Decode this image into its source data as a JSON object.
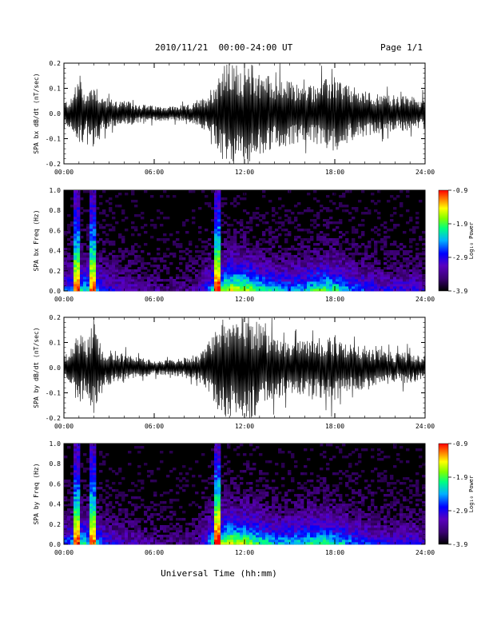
{
  "header": {
    "title": "2010/11/21  00:00-24:00 UT",
    "page": "Page 1/1"
  },
  "footer": {
    "xlabel": "Universal Time (hh:mm)"
  },
  "colors": {
    "trace": "#000000",
    "background": "#ffffff",
    "spectrogram_base": "#000000",
    "colormap": [
      "#000000",
      "#3a0070",
      "#5a00c0",
      "#0000ff",
      "#00b0ff",
      "#00ff80",
      "#80ff00",
      "#ffff00",
      "#ff8000",
      "#ff0000"
    ]
  },
  "chart_data": [
    {
      "type": "line",
      "panel": "bx-dbdt",
      "ylabel": "SPA bx dB/dt (nT/sec)",
      "ylim": [
        -0.2,
        0.2
      ],
      "yticks": [
        "-0.2",
        "-0.1",
        "0.0",
        "0.1",
        "0.2"
      ],
      "ytick_values": [
        -0.2,
        -0.1,
        0.0,
        0.1,
        0.2
      ],
      "xlim": [
        "00:00",
        "24:00"
      ],
      "xticks": [
        "00:00",
        "06:00",
        "12:00",
        "18:00",
        "24:00"
      ],
      "envelope": {
        "x_hours": [
          0,
          0.5,
          1,
          1.5,
          2,
          2.5,
          3,
          4,
          5,
          6,
          7,
          8,
          9,
          9.5,
          10,
          10.5,
          11,
          11.5,
          12,
          12.5,
          13,
          13.5,
          14,
          15,
          16,
          17,
          18,
          19,
          20,
          21,
          22,
          23,
          24
        ],
        "amplitude": [
          0.05,
          0.06,
          0.15,
          0.08,
          0.14,
          0.07,
          0.06,
          0.05,
          0.04,
          0.03,
          0.03,
          0.03,
          0.05,
          0.08,
          0.12,
          0.2,
          0.2,
          0.2,
          0.18,
          0.2,
          0.17,
          0.16,
          0.14,
          0.13,
          0.11,
          0.13,
          0.15,
          0.11,
          0.09,
          0.08,
          0.07,
          0.07,
          0.06
        ]
      }
    },
    {
      "type": "heatmap",
      "panel": "bx-spectrogram",
      "ylabel": "SPA bx Freq (Hz)",
      "ylim": [
        0.0,
        1.0
      ],
      "yticks": [
        "0.0",
        "0.2",
        "0.4",
        "0.6",
        "0.8",
        "1.0"
      ],
      "ytick_values": [
        0.0,
        0.2,
        0.4,
        0.6,
        0.8,
        1.0
      ],
      "xlim": [
        "00:00",
        "24:00"
      ],
      "xticks": [
        "00:00",
        "06:00",
        "12:00",
        "18:00",
        "24:00"
      ],
      "colorbar": {
        "label": "Log₁₀ Power",
        "range": [
          -3.9,
          -0.9
        ],
        "ticks": [
          "-0.9",
          "-1.9",
          "-2.9",
          "-3.9"
        ]
      },
      "intensity_profile": {
        "x_hours": [
          0,
          1,
          2,
          3,
          4,
          5,
          6,
          7,
          8,
          9,
          10,
          11,
          12,
          13,
          14,
          15,
          16,
          17,
          18,
          19,
          20,
          21,
          22,
          23,
          24
        ],
        "level": [
          0.35,
          0.55,
          0.5,
          0.3,
          0.25,
          0.2,
          0.18,
          0.15,
          0.15,
          0.2,
          0.55,
          0.8,
          0.75,
          0.6,
          0.5,
          0.45,
          0.5,
          0.65,
          0.6,
          0.45,
          0.35,
          0.3,
          0.28,
          0.3,
          0.25
        ]
      },
      "bright_streaks_hours": [
        0.8,
        1.9,
        10.2
      ]
    },
    {
      "type": "line",
      "panel": "by-dbdt",
      "ylabel": "SPA by dB/dt (nT/sec)",
      "ylim": [
        -0.2,
        0.2
      ],
      "yticks": [
        "-0.2",
        "-0.1",
        "0.0",
        "0.1",
        "0.2"
      ],
      "ytick_values": [
        -0.2,
        -0.1,
        0.0,
        0.1,
        0.2
      ],
      "xlim": [
        "00:00",
        "24:00"
      ],
      "xticks": [
        "00:00",
        "06:00",
        "12:00",
        "18:00",
        "24:00"
      ],
      "envelope": {
        "x_hours": [
          0,
          0.5,
          1,
          1.5,
          2,
          2.5,
          3,
          4,
          5,
          6,
          7,
          8,
          9,
          9.5,
          10,
          10.5,
          11,
          11.5,
          12,
          12.5,
          13,
          13.5,
          14,
          15,
          16,
          17,
          18,
          19,
          20,
          21,
          22,
          23,
          24
        ],
        "amplitude": [
          0.06,
          0.08,
          0.16,
          0.1,
          0.2,
          0.08,
          0.07,
          0.06,
          0.04,
          0.03,
          0.03,
          0.04,
          0.06,
          0.09,
          0.14,
          0.2,
          0.2,
          0.2,
          0.2,
          0.2,
          0.18,
          0.15,
          0.13,
          0.1,
          0.11,
          0.12,
          0.13,
          0.1,
          0.08,
          0.07,
          0.06,
          0.06,
          0.05
        ]
      }
    },
    {
      "type": "heatmap",
      "panel": "by-spectrogram",
      "ylabel": "SPA by Freq (Hz)",
      "ylim": [
        0.0,
        1.0
      ],
      "yticks": [
        "0.0",
        "0.2",
        "0.4",
        "0.6",
        "0.8",
        "1.0"
      ],
      "ytick_values": [
        0.0,
        0.2,
        0.4,
        0.6,
        0.8,
        1.0
      ],
      "xlim": [
        "00:00",
        "24:00"
      ],
      "xticks": [
        "00:00",
        "06:00",
        "12:00",
        "18:00",
        "24:00"
      ],
      "colorbar": {
        "label": "Log₁₀ Power",
        "range": [
          -3.9,
          -0.9
        ],
        "ticks": [
          "-0.9",
          "-1.9",
          "-2.9",
          "-3.9"
        ]
      },
      "intensity_profile": {
        "x_hours": [
          0,
          1,
          2,
          3,
          4,
          5,
          6,
          7,
          8,
          9,
          10,
          11,
          12,
          13,
          14,
          15,
          16,
          17,
          18,
          19,
          20,
          21,
          22,
          23,
          24
        ],
        "level": [
          0.35,
          0.55,
          0.5,
          0.3,
          0.25,
          0.2,
          0.18,
          0.15,
          0.15,
          0.2,
          0.6,
          0.8,
          0.75,
          0.6,
          0.5,
          0.5,
          0.55,
          0.6,
          0.55,
          0.45,
          0.35,
          0.3,
          0.3,
          0.3,
          0.25
        ]
      },
      "bright_streaks_hours": [
        0.8,
        1.9,
        10.2
      ]
    }
  ]
}
